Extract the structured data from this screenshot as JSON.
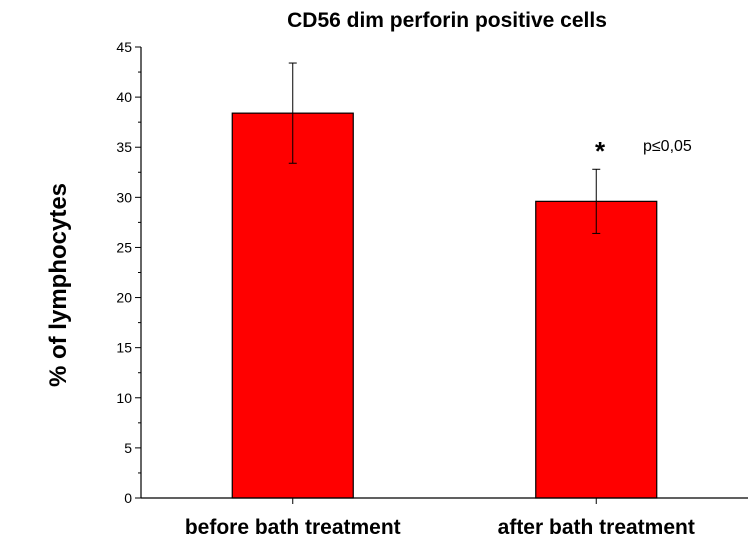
{
  "chart_data": {
    "type": "bar",
    "title": "CD56 dim perforin positive cells",
    "ylabel": "% of lymphocytes",
    "xlabel": "",
    "categories": [
      "before bath treatment",
      "after bath treatment"
    ],
    "values": [
      38.4,
      29.6
    ],
    "error_upper": [
      43.4,
      32.8
    ],
    "error_lower": [
      33.4,
      26.4
    ],
    "ylim": [
      0,
      45
    ],
    "yticks": [
      0,
      5,
      10,
      15,
      20,
      25,
      30,
      35,
      40,
      45
    ],
    "bar_color": "#ff0000",
    "annotation": {
      "marker": "*",
      "text": "p≤0,05",
      "category_index": 1
    }
  }
}
